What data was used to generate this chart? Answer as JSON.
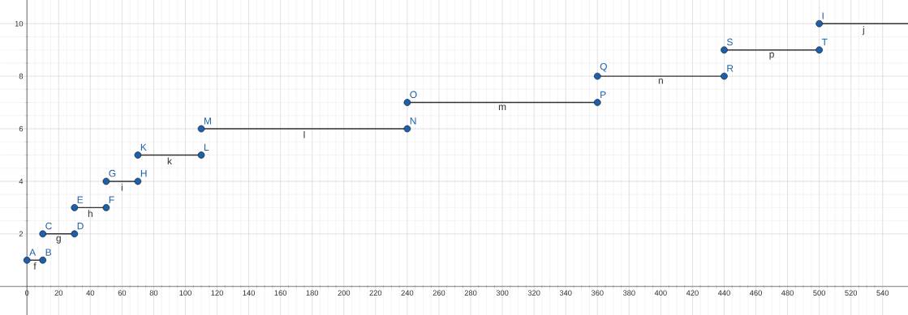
{
  "chart_data": {
    "type": "line",
    "xlim": [
      -17,
      556
    ],
    "ylim": [
      -1.1,
      10.9
    ],
    "xticks": [
      0,
      20,
      40,
      60,
      80,
      100,
      120,
      140,
      160,
      180,
      200,
      220,
      240,
      260,
      280,
      300,
      320,
      340,
      360,
      380,
      400,
      420,
      440,
      460,
      480,
      500,
      520,
      540
    ],
    "yticks": [
      2,
      4,
      6,
      8,
      10
    ],
    "grid": true,
    "series": [
      {
        "name": "f",
        "color": "#333333",
        "x": [
          0,
          10
        ],
        "values": [
          1,
          1
        ]
      },
      {
        "name": "g",
        "color": "#333333",
        "x": [
          10,
          30
        ],
        "values": [
          2,
          2
        ]
      },
      {
        "name": "h",
        "color": "#333333",
        "x": [
          30,
          50
        ],
        "values": [
          3,
          3
        ]
      },
      {
        "name": "i",
        "color": "#333333",
        "x": [
          50,
          70
        ],
        "values": [
          4,
          4
        ]
      },
      {
        "name": "k",
        "color": "#333333",
        "x": [
          70,
          110
        ],
        "values": [
          5,
          5
        ]
      },
      {
        "name": "l",
        "color": "#333333",
        "x": [
          110,
          240
        ],
        "values": [
          6,
          6
        ]
      },
      {
        "name": "m",
        "color": "#333333",
        "x": [
          240,
          360
        ],
        "values": [
          7,
          7
        ]
      },
      {
        "name": "n",
        "color": "#333333",
        "x": [
          360,
          440
        ],
        "values": [
          8,
          8
        ]
      },
      {
        "name": "p",
        "color": "#333333",
        "x": [
          440,
          500
        ],
        "values": [
          9,
          9
        ]
      },
      {
        "name": "j",
        "color": "#333333",
        "x": [
          500,
          556
        ],
        "values": [
          10,
          10
        ]
      },
      {
        "type": "scatter",
        "marker": "circle",
        "color": "#1f5fa8",
        "x": [
          0,
          10,
          10,
          30,
          30,
          50,
          50,
          70,
          70,
          110,
          110,
          240,
          240,
          360,
          360,
          440,
          440,
          500,
          500
        ],
        "values": [
          1,
          1,
          2,
          2,
          3,
          3,
          4,
          4,
          5,
          5,
          6,
          6,
          7,
          7,
          8,
          8,
          9,
          9,
          10
        ]
      }
    ],
    "annotations": [
      {
        "text": "A",
        "x": 0,
        "y": 1
      },
      {
        "text": "B",
        "x": 10,
        "y": 1
      },
      {
        "text": "C",
        "x": 10,
        "y": 2
      },
      {
        "text": "D",
        "x": 30,
        "y": 2
      },
      {
        "text": "E",
        "x": 30,
        "y": 3
      },
      {
        "text": "F",
        "x": 50,
        "y": 3
      },
      {
        "text": "G",
        "x": 50,
        "y": 4
      },
      {
        "text": "H",
        "x": 70,
        "y": 4
      },
      {
        "text": "K",
        "x": 70,
        "y": 5
      },
      {
        "text": "L",
        "x": 110,
        "y": 5
      },
      {
        "text": "M",
        "x": 110,
        "y": 6
      },
      {
        "text": "N",
        "x": 240,
        "y": 6
      },
      {
        "text": "O",
        "x": 240,
        "y": 7
      },
      {
        "text": "P",
        "x": 360,
        "y": 7
      },
      {
        "text": "Q",
        "x": 360,
        "y": 8
      },
      {
        "text": "R",
        "x": 440,
        "y": 8
      },
      {
        "text": "S",
        "x": 440,
        "y": 9
      },
      {
        "text": "T",
        "x": 500,
        "y": 9
      },
      {
        "text": "I",
        "x": 500,
        "y": 10
      }
    ]
  }
}
